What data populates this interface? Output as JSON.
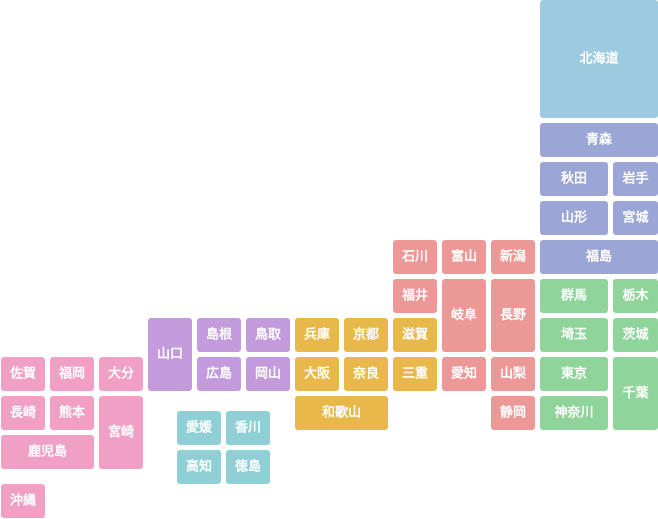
{
  "regions": [
    {
      "color": "#9ccbe0",
      "prefectures": [
        "北海道"
      ]
    },
    {
      "color": "#9ba5d6",
      "prefectures": [
        "青森",
        "秋田",
        "岩手",
        "山形",
        "宮城",
        "福島"
      ]
    },
    {
      "color": "#8fd49a",
      "prefectures": [
        "群馬",
        "栃木",
        "埼玉",
        "茨城",
        "東京",
        "千葉",
        "神奈川"
      ]
    },
    {
      "color": "#ec9896",
      "prefectures": [
        "石川",
        "富山",
        "新潟",
        "福井",
        "岐阜",
        "長野",
        "愛知",
        "山梨",
        "静岡"
      ]
    },
    {
      "color": "#e8b84a",
      "prefectures": [
        "兵庫",
        "京都",
        "滋賀",
        "大阪",
        "奈良",
        "三重",
        "和歌山"
      ]
    },
    {
      "color": "#c39bdc",
      "prefectures": [
        "山口",
        "島根",
        "鳥取",
        "広島",
        "岡山"
      ]
    },
    {
      "color": "#8fcfd6",
      "prefectures": [
        "愛媛",
        "香川",
        "高知",
        "徳島"
      ]
    },
    {
      "color": "#f0a0c4",
      "prefectures": [
        "佐賀",
        "福岡",
        "大分",
        "長崎",
        "熊本",
        "宮崎",
        "鹿児島",
        "沖縄"
      ]
    }
  ]
}
